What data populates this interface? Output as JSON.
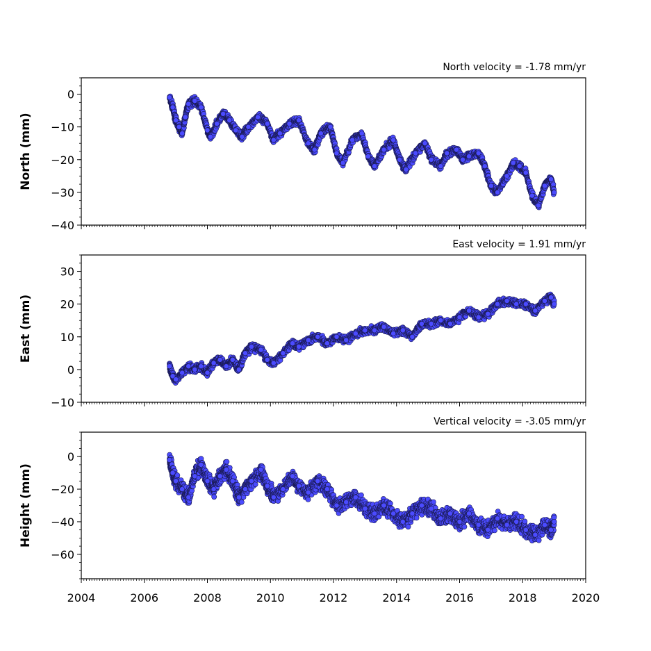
{
  "chart_data": [
    {
      "type": "scatter",
      "title": "North velocity = -1.78 mm/yr",
      "ylabel": "North (mm)",
      "xlim": [
        2004,
        2020
      ],
      "ylim": [
        -40,
        5
      ],
      "yticks": [
        0,
        -10,
        -20,
        -30,
        -40
      ],
      "ytick_labels": [
        "0",
        "−10",
        "−20",
        "−30",
        "−40"
      ],
      "series": [
        {
          "x": [
            2006.8,
            2006.9,
            2007.0,
            2007.1,
            2007.2,
            2007.3,
            2007.4,
            2007.6,
            2007.8,
            2008.0,
            2008.1,
            2008.3,
            2008.5,
            2008.7,
            2008.9,
            2009.1,
            2009.3,
            2009.6,
            2009.9,
            2010.1,
            2010.3,
            2010.6,
            2010.9,
            2011.2,
            2011.4,
            2011.6,
            2011.9,
            2012.1,
            2012.3,
            2012.6,
            2012.9,
            2013.1,
            2013.3,
            2013.6,
            2013.9,
            2014.1,
            2014.3,
            2014.6,
            2014.9,
            2015.1,
            2015.4,
            2015.6,
            2015.9,
            2016.1,
            2016.3,
            2016.6,
            2016.8,
            2017.0,
            2017.2,
            2017.5,
            2017.7,
            2017.9,
            2018.1,
            2018.3,
            2018.5,
            2018.7,
            2018.9,
            2019.0
          ],
          "y": [
            -1,
            -4,
            -8,
            -10,
            -12,
            -7,
            -3,
            -2,
            -4,
            -11,
            -13,
            -9,
            -6,
            -8,
            -11,
            -13,
            -10,
            -7,
            -9,
            -14,
            -12,
            -9,
            -8,
            -15,
            -17,
            -12,
            -10,
            -18,
            -21,
            -14,
            -12,
            -19,
            -22,
            -17,
            -14,
            -20,
            -23,
            -18,
            -15,
            -20,
            -22,
            -18,
            -17,
            -20,
            -19,
            -18,
            -22,
            -28,
            -30,
            -25,
            -21,
            -22,
            -24,
            -31,
            -34,
            -28,
            -26,
            -30
          ]
        }
      ]
    },
    {
      "type": "scatter",
      "title": "East velocity = 1.91 mm/yr",
      "ylabel": "East (mm)",
      "xlim": [
        2004,
        2020
      ],
      "ylim": [
        -10,
        35
      ],
      "yticks": [
        30,
        20,
        10,
        0,
        -10
      ],
      "ytick_labels": [
        "30",
        "20",
        "10",
        "0",
        "−10"
      ],
      "series": [
        {
          "x": [
            2006.8,
            2006.9,
            2007.0,
            2007.2,
            2007.4,
            2007.6,
            2007.8,
            2008.0,
            2008.2,
            2008.4,
            2008.6,
            2008.8,
            2009.0,
            2009.2,
            2009.4,
            2009.7,
            2009.9,
            2010.1,
            2010.4,
            2010.7,
            2010.9,
            2011.2,
            2011.5,
            2011.8,
            2012.1,
            2012.4,
            2012.7,
            2013.0,
            2013.3,
            2013.6,
            2013.9,
            2014.2,
            2014.5,
            2014.8,
            2015.1,
            2015.4,
            2015.7,
            2016.0,
            2016.3,
            2016.6,
            2016.9,
            2017.2,
            2017.5,
            2017.8,
            2018.1,
            2018.4,
            2018.7,
            2018.9,
            2019.0
          ],
          "y": [
            1,
            -2,
            -3,
            -1,
            1,
            0,
            1,
            -1,
            2,
            3,
            1,
            3,
            0,
            5,
            7,
            6,
            3,
            2,
            5,
            8,
            7,
            9,
            10,
            8,
            10,
            9,
            11,
            12,
            12,
            13,
            11,
            12,
            10,
            14,
            14,
            15,
            14,
            16,
            18,
            16,
            17,
            20,
            21,
            20,
            20,
            18,
            21,
            22,
            20
          ]
        }
      ]
    },
    {
      "type": "scatter",
      "title": "Vertical velocity = -3.05 mm/yr",
      "ylabel": "Height (mm)",
      "xlabel": "",
      "xlim": [
        2004,
        2020
      ],
      "ylim": [
        -75,
        15
      ],
      "yticks": [
        0,
        -20,
        -40,
        -60
      ],
      "ytick_labels": [
        "0",
        "−20",
        "−40",
        "−60"
      ],
      "series": [
        {
          "x": [
            2006.8,
            2006.9,
            2007.0,
            2007.2,
            2007.4,
            2007.6,
            2007.8,
            2008.0,
            2008.2,
            2008.4,
            2008.6,
            2008.8,
            2009.0,
            2009.2,
            2009.4,
            2009.7,
            2009.9,
            2010.1,
            2010.4,
            2010.7,
            2010.9,
            2011.2,
            2011.5,
            2011.8,
            2012.1,
            2012.4,
            2012.7,
            2013.0,
            2013.3,
            2013.6,
            2013.9,
            2014.2,
            2014.5,
            2014.8,
            2015.1,
            2015.4,
            2015.7,
            2016.0,
            2016.3,
            2016.6,
            2016.9,
            2017.2,
            2017.5,
            2017.8,
            2018.1,
            2018.4,
            2018.7,
            2018.9,
            2019.0
          ],
          "y": [
            -2,
            -10,
            -15,
            -20,
            -25,
            -12,
            -5,
            -15,
            -20,
            -12,
            -8,
            -15,
            -25,
            -20,
            -15,
            -8,
            -18,
            -25,
            -20,
            -12,
            -18,
            -22,
            -15,
            -20,
            -30,
            -28,
            -25,
            -32,
            -35,
            -30,
            -35,
            -40,
            -35,
            -30,
            -32,
            -38,
            -35,
            -40,
            -35,
            -42,
            -45,
            -38,
            -42,
            -40,
            -45,
            -48,
            -42,
            -45,
            -40
          ]
        }
      ]
    }
  ],
  "x_axis": {
    "ticks": [
      2004,
      2006,
      2008,
      2010,
      2012,
      2014,
      2016,
      2018,
      2020
    ],
    "tick_labels": [
      "2004",
      "2006",
      "2008",
      "2010",
      "2012",
      "2014",
      "2016",
      "2018",
      "2020"
    ]
  },
  "colors": {
    "marker_fill": "#4b4bff",
    "marker_edge": "#1a1a55",
    "axis": "#000000"
  }
}
